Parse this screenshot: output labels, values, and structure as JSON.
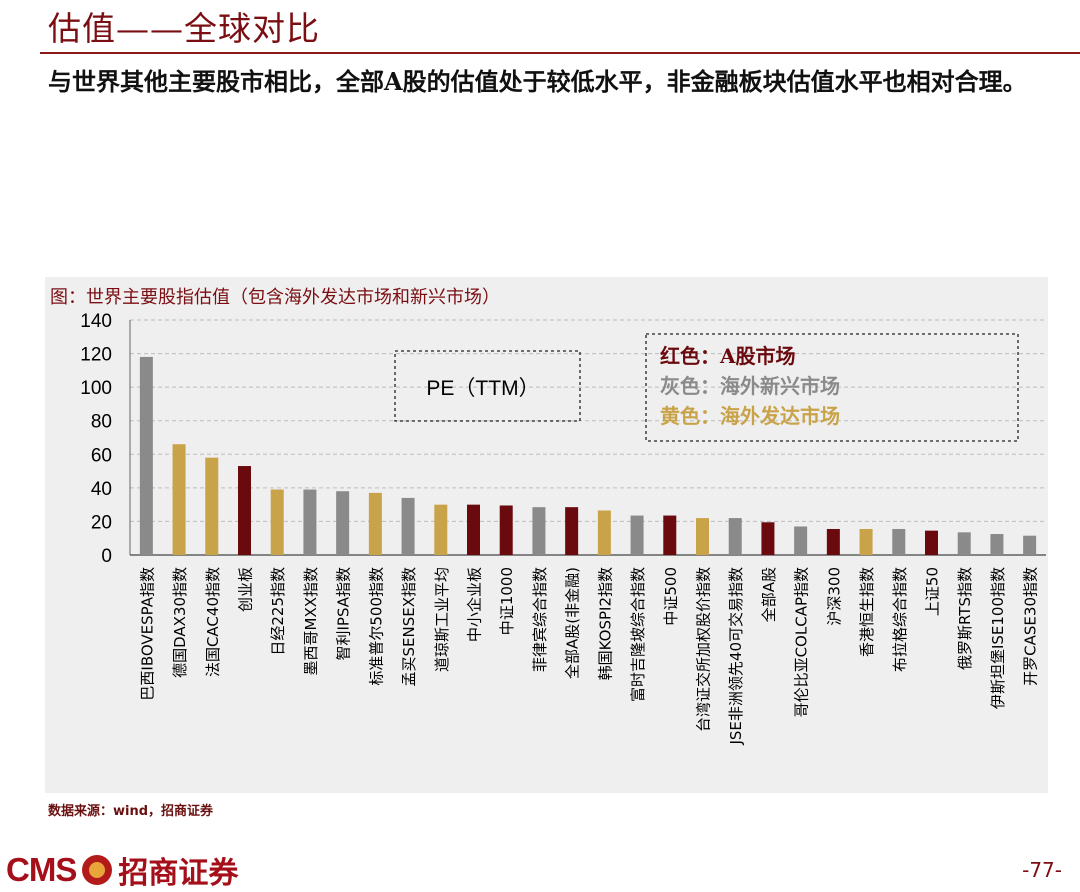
{
  "page": {
    "title": "估值——全球对比",
    "subtitle": "与世界其他主要股市相比，全部A股的估值处于较低水平，非金融板块估值水平也相对合理。",
    "source": "数据来源：wind，招商证券",
    "brand_cms": "CMS",
    "brand_name": "招商证券",
    "page_number": "-77-"
  },
  "chart_data": {
    "type": "bar",
    "title": "图：世界主要股指估值（包含海外发达市场和新兴市场）",
    "annotation": "PE（TTM）",
    "ylim": [
      0,
      140
    ],
    "yticks": [
      "0",
      "20",
      "40",
      "60",
      "80",
      "100",
      "120",
      "140"
    ],
    "grid": "dashed horizontal",
    "legend_position": "top-right",
    "legend": [
      {
        "label": "红色：",
        "text": "A股市场",
        "color": "#6b0a0e"
      },
      {
        "label": "灰色：",
        "text": "海外新兴市场",
        "color": "#8a8a8a"
      },
      {
        "label": "黄色：",
        "text": "海外发达市场",
        "color": "#c9a349"
      }
    ],
    "categories": [
      "巴西IBOVESPA指数",
      "德国DAX30指数",
      "法国CAC40指数",
      "创业板",
      "日经225指数",
      "墨西哥MXX指数",
      "智利IPSA指数",
      "标准普尔500指数",
      "孟买SENSEX指数",
      "道琼斯工业平均",
      "中小企业板",
      "中证1000",
      "菲律宾综合指数",
      "全部A股(非金融)",
      "韩国KOSPI2指数",
      "富时吉隆坡综合指数",
      "中证500",
      "台湾证交所加权股价指数",
      "JSE非洲领先40可交易指数",
      "全部A股",
      "哥伦比亚COLCAP指数",
      "沪深300",
      "香港恒生指数",
      "布拉格综合指数",
      "上证50",
      "俄罗斯RTS指数",
      "伊斯坦堡ISE100指数",
      "开罗CASE30指数"
    ],
    "values": [
      118,
      66,
      58,
      53,
      39,
      39,
      38,
      37,
      34,
      30,
      30,
      29.5,
      28.5,
      28.5,
      26.5,
      23.5,
      23.5,
      22,
      22,
      19.5,
      17,
      15.5,
      15.5,
      15.5,
      14.5,
      13.5,
      12.5,
      11.5
    ],
    "groups": [
      "em",
      "dev",
      "dev",
      "a",
      "dev",
      "em",
      "em",
      "dev",
      "em",
      "dev",
      "a",
      "a",
      "em",
      "a",
      "dev",
      "em",
      "a",
      "dev",
      "em",
      "a",
      "em",
      "a",
      "dev",
      "em",
      "a",
      "em",
      "em",
      "em"
    ],
    "colors": {
      "a": "#6b0a0e",
      "em": "#8a8a8a",
      "dev": "#c9a349"
    }
  }
}
